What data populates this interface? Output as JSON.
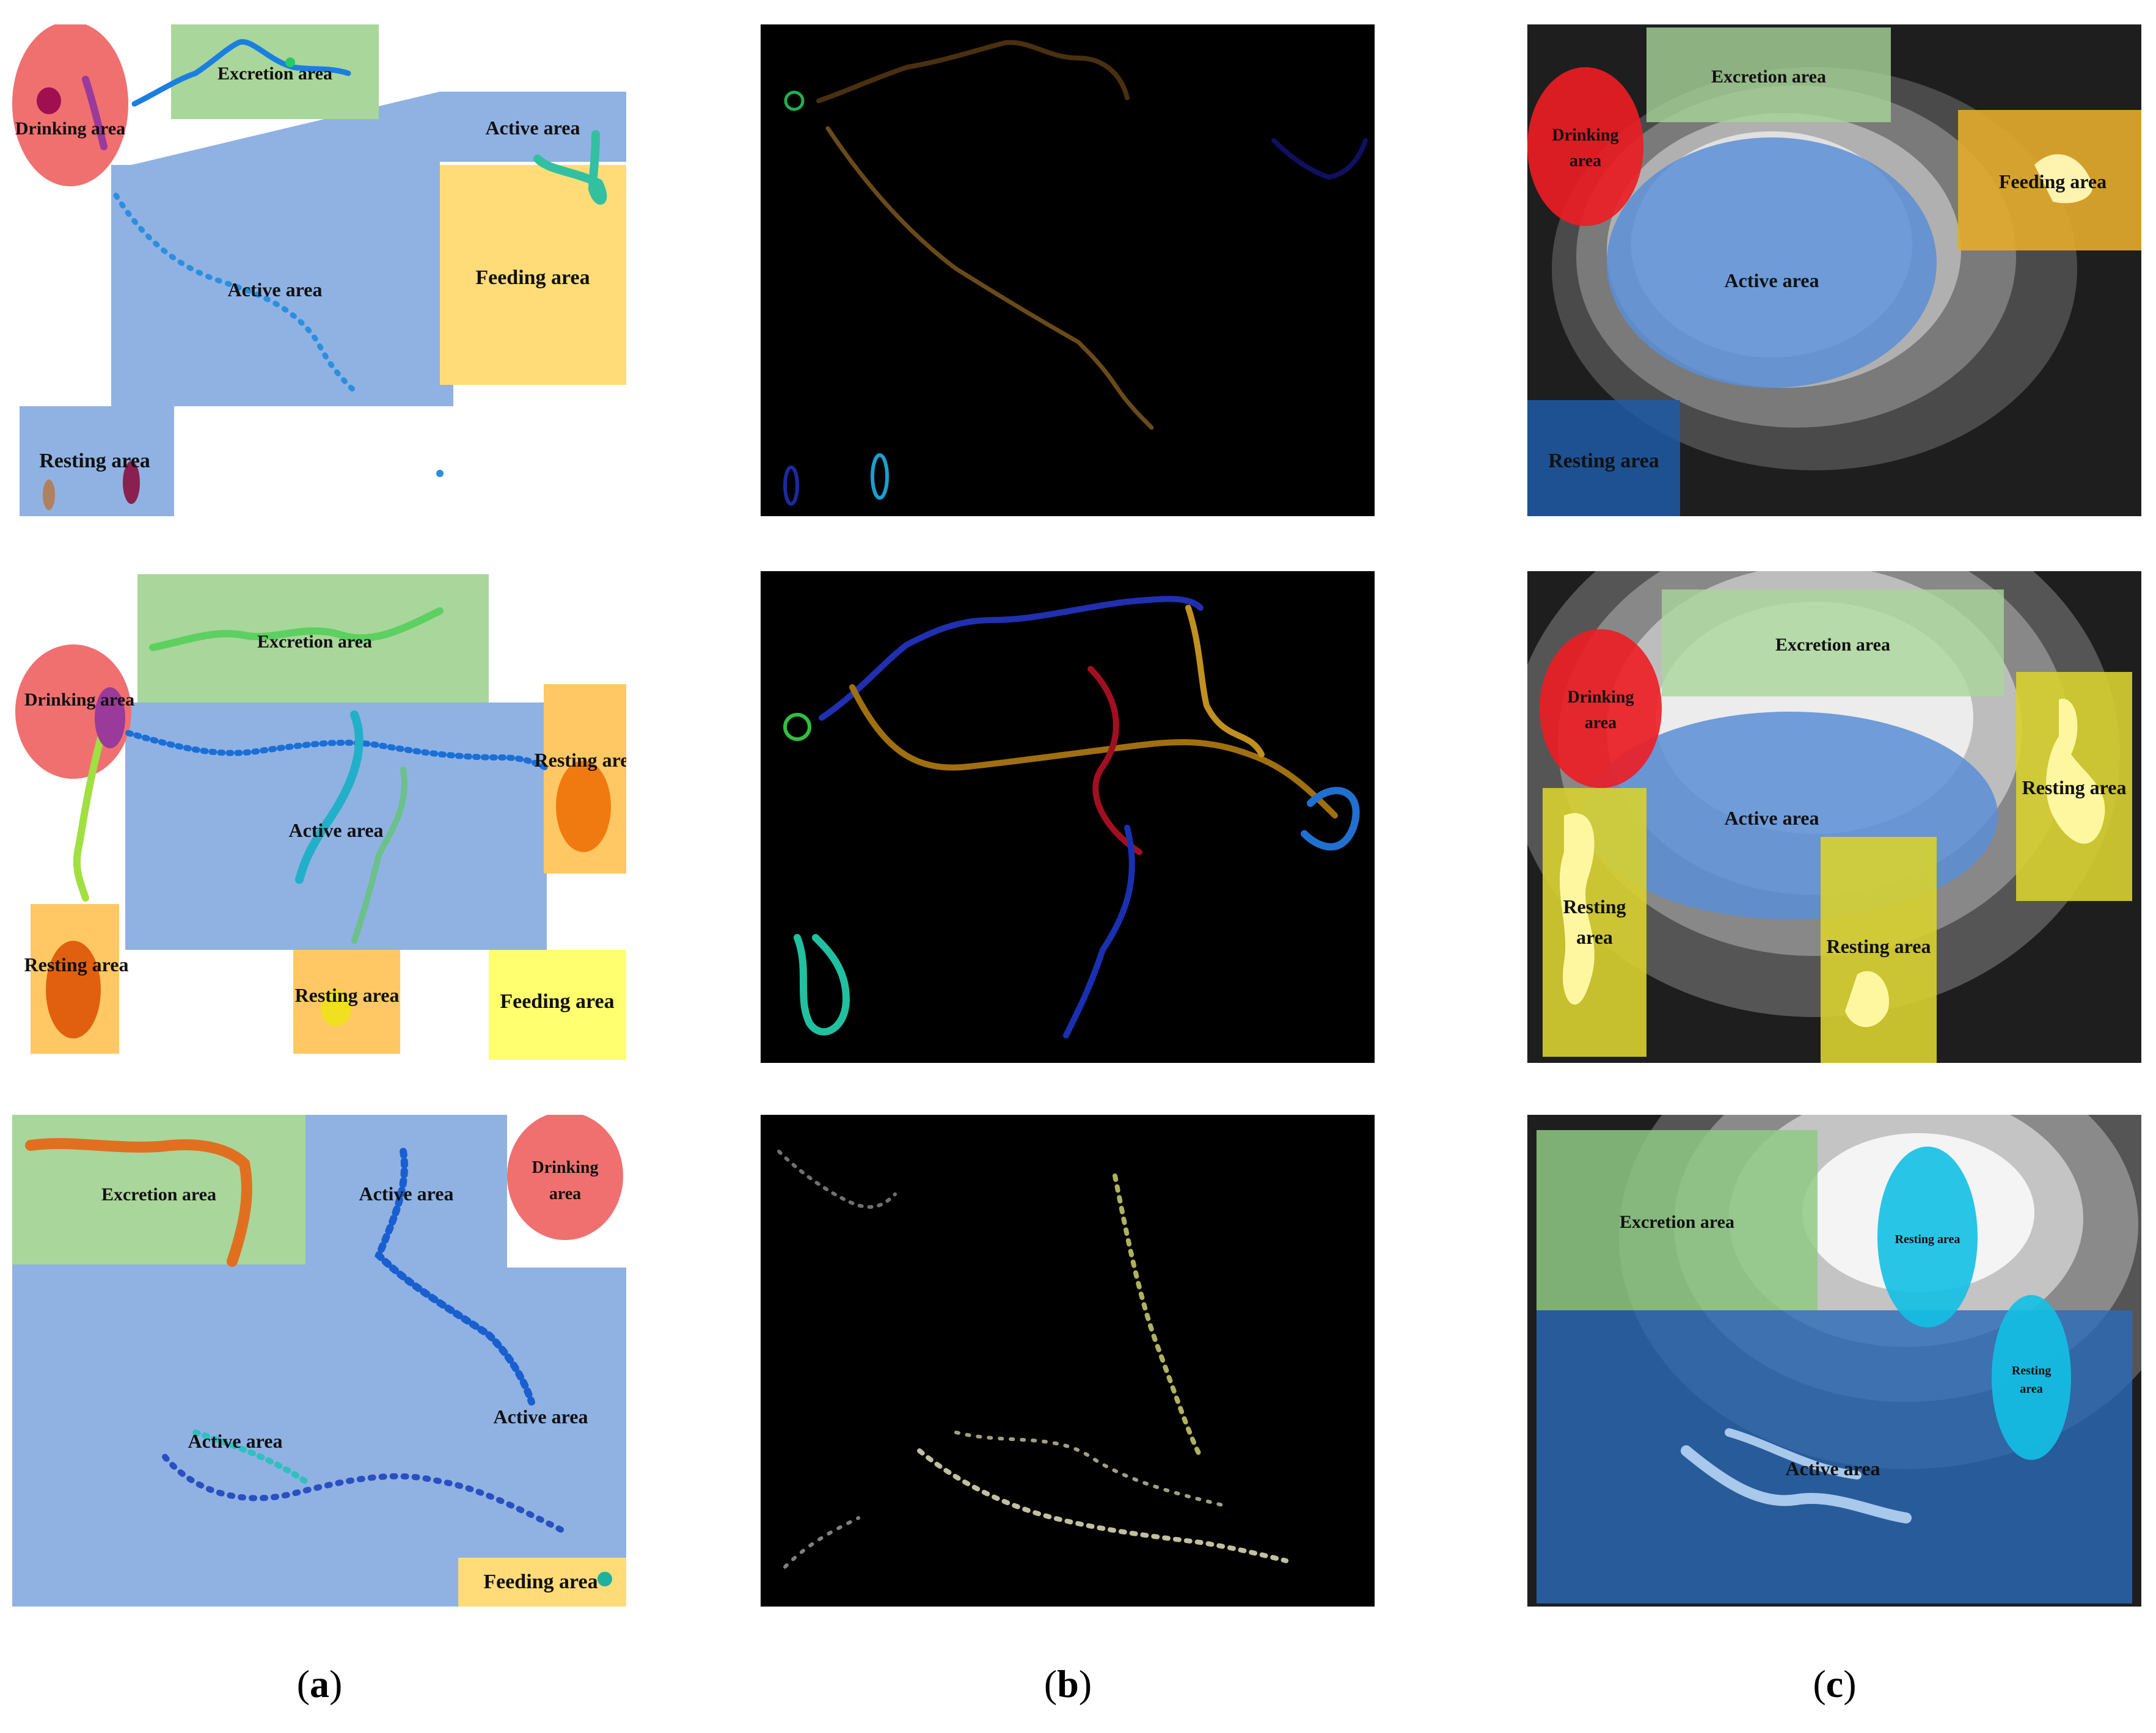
{
  "colors": {
    "drinking": "#f07070",
    "excretion": "#a9d69a",
    "active": "#8fb2e3",
    "feeding": "#ffdc78",
    "resting_orange": "#ffc864",
    "resting_yellow": "#d8d030",
    "feeding_light": "#ffff66",
    "resting_cyan": "#12c0e6"
  },
  "panels": {
    "a1": {
      "drinking": "Drinking area",
      "excretion": "Excretion area",
      "active_right": "Active area",
      "active_center": "Active area",
      "feeding": "Feeding area",
      "resting": "Resting area"
    },
    "a2": {
      "excretion": "Excretion area",
      "drinking": "Drinking area",
      "resting_right": "Resting area",
      "active": "Active area",
      "resting_left": "Resting area",
      "resting_bottom": "Resting area",
      "feeding": "Feeding area"
    },
    "a3": {
      "excretion": "Excretion area",
      "active_top": "Active area",
      "drinking": "Drinking area",
      "active_right": "Active area",
      "active_left": "Active area",
      "feeding": "Feeding area"
    },
    "c1": {
      "excretion": "Excretion area",
      "drinking": "Drinking area",
      "feeding": "Feeding area",
      "active": "Active area",
      "resting": "Resting area"
    },
    "c2": {
      "excretion": "Excretion area",
      "drinking": "Drinking area",
      "resting_right": "Resting area",
      "active": "Active area",
      "resting_left": "Resting area",
      "resting_bottom": "Resting area"
    },
    "c3": {
      "excretion": "Excretion area",
      "resting_top": "Resting area",
      "resting_right": "Resting area",
      "active": "Active area"
    }
  },
  "captions": [
    "a",
    "b",
    "c"
  ]
}
